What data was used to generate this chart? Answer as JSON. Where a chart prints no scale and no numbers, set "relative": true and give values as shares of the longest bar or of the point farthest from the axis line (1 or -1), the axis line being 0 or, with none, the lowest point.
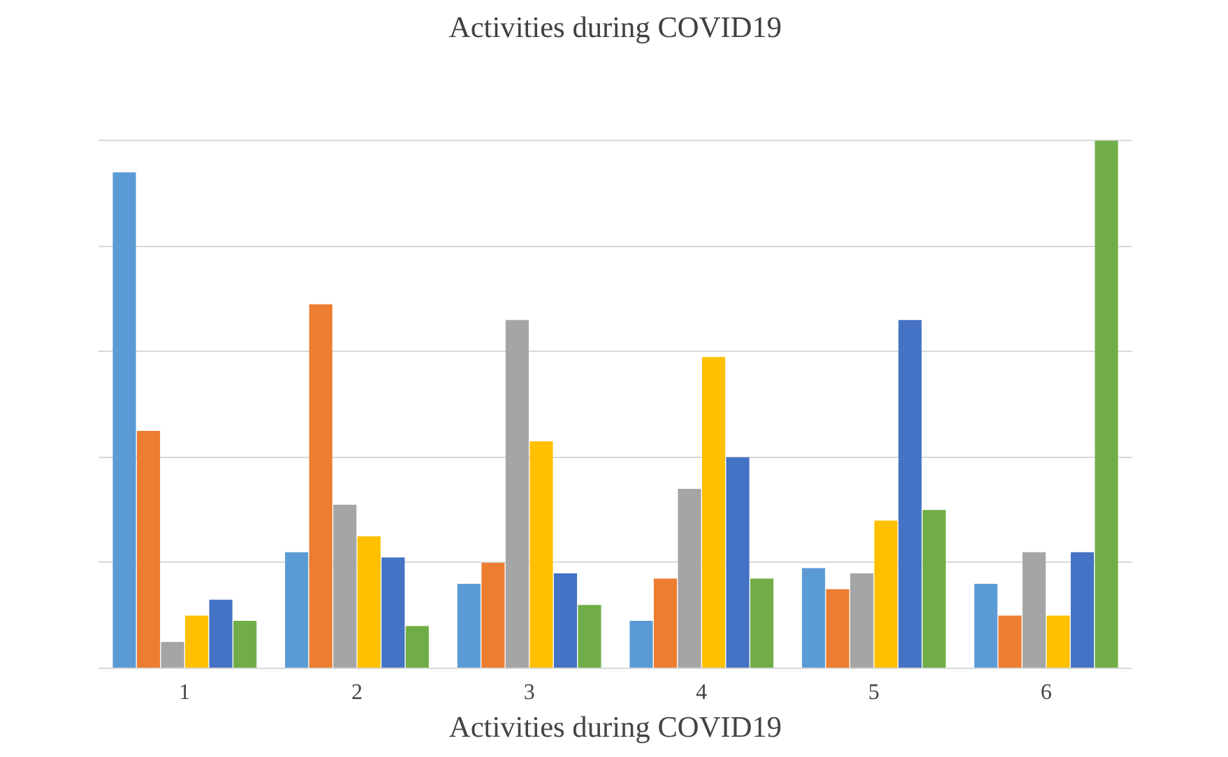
{
  "chart_data": {
    "type": "bar",
    "title": "Activities during COVID19",
    "xlabel": "Activities during COVID19",
    "categories": [
      "1",
      "2",
      "3",
      "4",
      "5",
      "6"
    ],
    "relative": true,
    "grid": "y",
    "series": [
      {
        "color": "#5b9bd5",
        "values": [
          0.94,
          0.22,
          0.16,
          0.09,
          0.19,
          0.16
        ]
      },
      {
        "color": "#ed7d31",
        "values": [
          0.45,
          0.69,
          0.2,
          0.17,
          0.15,
          0.1
        ]
      },
      {
        "color": "#a5a5a5",
        "values": [
          0.05,
          0.31,
          0.66,
          0.34,
          0.18,
          0.22
        ]
      },
      {
        "color": "#ffc000",
        "values": [
          0.1,
          0.25,
          0.43,
          0.59,
          0.28,
          0.1
        ]
      },
      {
        "color": "#4472c4",
        "values": [
          0.13,
          0.21,
          0.18,
          0.4,
          0.66,
          0.22
        ]
      },
      {
        "color": "#70ad47",
        "values": [
          0.09,
          0.08,
          0.12,
          0.17,
          0.3,
          1.0
        ]
      }
    ]
  }
}
